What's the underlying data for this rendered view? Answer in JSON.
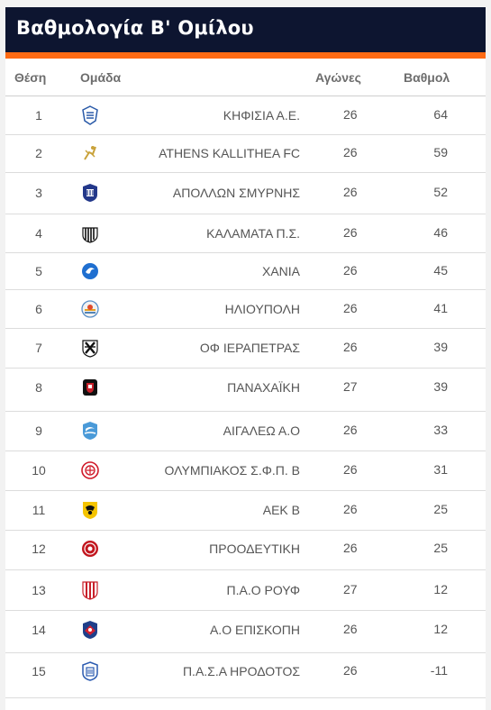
{
  "header": {
    "title": "Βαθμολογία Β' Ομίλου"
  },
  "columns": {
    "position": "Θέση",
    "team": "Ομάδα",
    "games": "Αγώνες",
    "points": "Βαθμολ"
  },
  "colors": {
    "header_bg": "#0d1530",
    "accent": "#ff6a13"
  },
  "standings": [
    {
      "pos": "1",
      "team": "ΚΗΦΙΣΙΑ Α.Ε.",
      "games": "26",
      "points": "64",
      "icon": "kifisia-crest-icon"
    },
    {
      "pos": "2",
      "team": "ATHENS KALLITHEA FC",
      "games": "26",
      "points": "59",
      "icon": "athens-kallithea-crest-icon"
    },
    {
      "pos": "3",
      "team": "ΑΠΟΛΛΩΝ ΣΜΥΡΝΗΣ",
      "games": "26",
      "points": "52",
      "icon": "apollon-smyrnis-crest-icon"
    },
    {
      "pos": "4",
      "team": "ΚΑΛΑΜΑΤΑ Π.Σ.",
      "games": "26",
      "points": "46",
      "icon": "kalamata-crest-icon"
    },
    {
      "pos": "5",
      "team": "ΧΑΝΙΑ",
      "games": "26",
      "points": "45",
      "icon": "chania-crest-icon"
    },
    {
      "pos": "6",
      "team": "ΗΛΙΟΥΠΟΛΗ",
      "games": "26",
      "points": "41",
      "icon": "ilioupoli-crest-icon"
    },
    {
      "pos": "7",
      "team": "ΟΦ ΙΕΡΑΠΕΤΡΑΣ",
      "games": "26",
      "points": "39",
      "icon": "of-ierapetras-crest-icon"
    },
    {
      "pos": "8",
      "team": "ΠΑΝΑΧΑΪΚΗ",
      "games": "27",
      "points": "39",
      "icon": "panachaiki-crest-icon"
    },
    {
      "pos": "9",
      "team": "ΑΙΓΑΛΕΩ Α.Ο",
      "games": "26",
      "points": "33",
      "icon": "aigaleo-crest-icon"
    },
    {
      "pos": "10",
      "team": "ΟΛΥΜΠΙΑΚΟΣ Σ.Φ.Π. Β",
      "games": "26",
      "points": "31",
      "icon": "olympiacos-crest-icon"
    },
    {
      "pos": "11",
      "team": "ΑΕΚ Β",
      "games": "26",
      "points": "25",
      "icon": "aek-crest-icon"
    },
    {
      "pos": "12",
      "team": "ΠΡΟΟΔΕΥΤΙΚΗ",
      "games": "26",
      "points": "25",
      "icon": "proodeftiki-crest-icon"
    },
    {
      "pos": "13",
      "team": "Π.Α.Ο ΡΟΥΦ",
      "games": "27",
      "points": "12",
      "icon": "pao-rouf-crest-icon"
    },
    {
      "pos": "14",
      "team": "Α.Ο ΕΠΙΣΚΟΠΗ",
      "games": "26",
      "points": "12",
      "icon": "episkopi-crest-icon"
    },
    {
      "pos": "15",
      "team": "Π.Α.Σ.Α ΗΡΟΔΟΤΟΣ",
      "games": "26",
      "points": "-11",
      "icon": "irodotos-crest-icon"
    }
  ]
}
